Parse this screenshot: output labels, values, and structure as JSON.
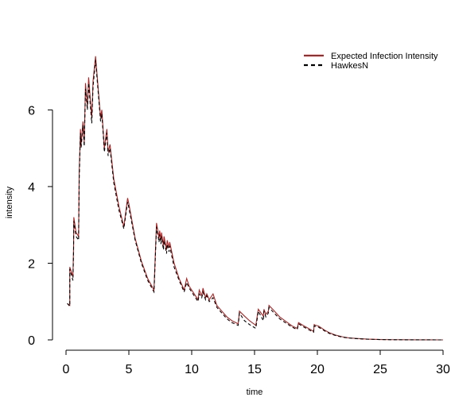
{
  "chart_data": {
    "type": "line",
    "title": "",
    "xlabel": "time",
    "ylabel": "intensity",
    "xlim": [
      0,
      30
    ],
    "ylim": [
      0,
      7.5
    ],
    "x_ticks": [
      "0",
      "5",
      "10",
      "15",
      "20",
      "25",
      "30"
    ],
    "y_ticks": [
      "0",
      "2",
      "4",
      "6"
    ],
    "grid": false,
    "legend_position": "top-right",
    "series": [
      {
        "name": "Expected Infection Intensity",
        "color": "#b22222",
        "style": "solid",
        "x": [
          0.1,
          0.3,
          0.3,
          0.55,
          0.6,
          0.62,
          0.8,
          1.0,
          1.05,
          1.15,
          1.2,
          1.35,
          1.45,
          1.55,
          1.7,
          1.8,
          1.95,
          2.05,
          2.15,
          2.35,
          2.55,
          2.75,
          2.85,
          3.05,
          3.25,
          3.35,
          3.5,
          3.6,
          3.8,
          4.2,
          4.6,
          4.9,
          5.0,
          5.5,
          6.0,
          6.5,
          7.0,
          7.2,
          7.25,
          7.4,
          7.45,
          7.55,
          7.6,
          7.75,
          7.8,
          8.0,
          8.05,
          8.2,
          8.25,
          8.6,
          9.0,
          9.4,
          9.6,
          9.8,
          10.2,
          10.5,
          10.6,
          10.8,
          10.9,
          11.1,
          11.2,
          11.4,
          11.7,
          12.0,
          12.4,
          12.8,
          13.2,
          13.7,
          13.8,
          14.2,
          14.6,
          15.1,
          15.3,
          15.7,
          15.75,
          15.9,
          16.1,
          16.15,
          16.5,
          17.0,
          17.5,
          18.0,
          18.4,
          18.5,
          18.9,
          19.4,
          19.7,
          19.75,
          19.85,
          20.1,
          20.6,
          21.0,
          21.5,
          22.0,
          22.5,
          23.0,
          23.5,
          24.0,
          25.0,
          26.0,
          27.0,
          28.0,
          29.0,
          30.0
        ],
        "y": [
          0.95,
          0.9,
          1.9,
          1.65,
          2.4,
          3.2,
          2.8,
          2.7,
          4.4,
          5.5,
          5.1,
          5.7,
          5.15,
          6.7,
          6.1,
          6.85,
          6.2,
          5.8,
          6.75,
          7.4,
          6.6,
          5.8,
          6.0,
          5.0,
          5.5,
          4.9,
          5.1,
          4.8,
          4.2,
          3.5,
          2.95,
          3.7,
          3.55,
          2.65,
          2.05,
          1.6,
          1.3,
          3.05,
          2.95,
          2.65,
          2.85,
          2.6,
          2.8,
          2.45,
          2.7,
          2.35,
          2.6,
          2.4,
          2.55,
          2.0,
          1.6,
          1.3,
          1.6,
          1.4,
          1.2,
          1.05,
          1.3,
          1.15,
          1.35,
          1.1,
          1.2,
          1.05,
          1.2,
          0.9,
          0.75,
          0.6,
          0.5,
          0.42,
          0.75,
          0.62,
          0.5,
          0.38,
          0.8,
          0.62,
          0.8,
          0.67,
          0.75,
          0.9,
          0.78,
          0.6,
          0.48,
          0.36,
          0.3,
          0.45,
          0.37,
          0.28,
          0.22,
          0.4,
          0.38,
          0.36,
          0.25,
          0.18,
          0.12,
          0.08,
          0.05,
          0.04,
          0.03,
          0.02,
          0.01,
          0.005,
          0.003,
          0.002,
          0.001,
          0.0
        ]
      },
      {
        "name": "HawkesN",
        "color": "#000000",
        "style": "dashed",
        "x": [
          0.1,
          0.3,
          0.3,
          0.55,
          0.6,
          0.62,
          0.8,
          1.0,
          1.05,
          1.15,
          1.2,
          1.35,
          1.45,
          1.55,
          1.7,
          1.8,
          1.95,
          2.05,
          2.15,
          2.35,
          2.55,
          2.75,
          2.85,
          3.05,
          3.25,
          3.35,
          3.5,
          3.6,
          3.8,
          4.2,
          4.6,
          4.9,
          5.0,
          5.5,
          6.0,
          6.5,
          7.0,
          7.2,
          7.25,
          7.4,
          7.45,
          7.55,
          7.6,
          7.75,
          7.8,
          8.0,
          8.05,
          8.2,
          8.25,
          8.6,
          9.0,
          9.4,
          9.6,
          9.8,
          10.2,
          10.5,
          10.6,
          10.8,
          10.9,
          11.1,
          11.2,
          11.4,
          11.7,
          12.0,
          12.4,
          12.8,
          13.2,
          13.7,
          13.8,
          14.2,
          14.6,
          15.1,
          15.3,
          15.7,
          15.75,
          15.9,
          16.1,
          16.15,
          16.5,
          17.0,
          17.5,
          18.0,
          18.4,
          18.5,
          18.9,
          19.4,
          19.7,
          19.75,
          19.85,
          20.1,
          20.6,
          21.0,
          21.5,
          22.0,
          22.5,
          23.0,
          23.5,
          24.0,
          25.0,
          26.0,
          27.0,
          28.0,
          29.0,
          30.0
        ],
        "y": [
          0.95,
          0.88,
          1.85,
          1.55,
          2.3,
          3.1,
          2.7,
          2.6,
          4.2,
          5.4,
          5.0,
          5.6,
          5.05,
          6.55,
          6.0,
          6.7,
          6.05,
          5.65,
          6.6,
          7.3,
          6.5,
          5.7,
          5.9,
          4.9,
          5.4,
          4.8,
          5.0,
          4.7,
          4.1,
          3.4,
          2.9,
          3.6,
          3.45,
          2.6,
          2.0,
          1.55,
          1.25,
          2.95,
          2.85,
          2.55,
          2.75,
          2.5,
          2.7,
          2.35,
          2.6,
          2.25,
          2.5,
          2.3,
          2.45,
          1.9,
          1.55,
          1.25,
          1.5,
          1.35,
          1.15,
          1.0,
          1.2,
          1.1,
          1.25,
          1.05,
          1.15,
          1.0,
          1.1,
          0.85,
          0.7,
          0.55,
          0.45,
          0.38,
          0.7,
          0.5,
          0.4,
          0.3,
          0.75,
          0.5,
          0.75,
          0.6,
          0.7,
          0.85,
          0.72,
          0.55,
          0.44,
          0.33,
          0.27,
          0.42,
          0.34,
          0.25,
          0.2,
          0.37,
          0.35,
          0.33,
          0.23,
          0.16,
          0.11,
          0.07,
          0.05,
          0.035,
          0.025,
          0.018,
          0.009,
          0.004,
          0.002,
          0.001,
          0.0005,
          0.0
        ]
      }
    ]
  }
}
